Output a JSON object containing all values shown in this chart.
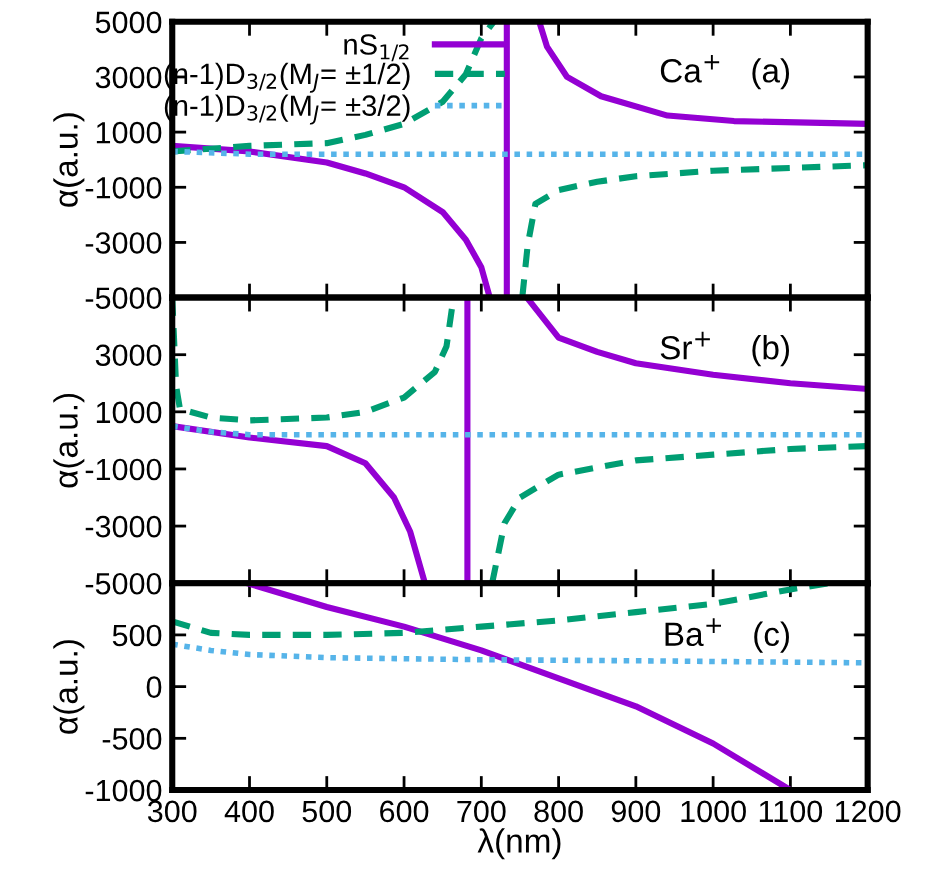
{
  "chart_data": [
    {
      "type": "line",
      "ylabel": "α(a.u.)",
      "annotations": [
        "Ca$^{+}$   (a)"
      ],
      "xlim": [
        300,
        1200
      ],
      "xticks": [
        300,
        400,
        500,
        600,
        700,
        800,
        900,
        1000,
        1100,
        1200
      ],
      "ylim": [
        -5000,
        5000
      ],
      "yticks": [
        -5000,
        -3000,
        -1000,
        1000,
        3000,
        5000
      ],
      "tick_labels": "y",
      "grid": false,
      "legend": "top left",
      "series": [
        {
          "name": "nS$_{1/2}$",
          "color": "#9400d3",
          "line_style": "solid",
          "x": [
            300,
            400,
            500,
            550,
            600,
            650,
            680,
            700,
            710,
            null,
            733,
            733,
            null,
            775,
            785,
            811,
            855,
            941,
            1027,
            1200
          ],
          "values": [
            500,
            300,
            -100,
            -500,
            -1000,
            -1900,
            -2900,
            -3900,
            -4900,
            null,
            -5000,
            5000,
            null,
            5000,
            4100,
            3000,
            2300,
            1600,
            1400,
            1300
          ]
        },
        {
          "name": "(n-1)D$_{3/2}$(M$_{J}$= ±1/2)",
          "color": "#009e73",
          "line_style": "dashed",
          "x": [
            300,
            400,
            500,
            550,
            600,
            650,
            680,
            700,
            716,
            null,
            753,
            760,
            770,
            800,
            850,
            900,
            1000,
            1100,
            1200
          ],
          "values": [
            300,
            500,
            600,
            900,
            1300,
            2100,
            3100,
            4400,
            5000,
            null,
            -5000,
            -3100,
            -1600,
            -1100,
            -800,
            -600,
            -400,
            -300,
            -200
          ]
        },
        {
          "name": "(n-1)D$_{3/2}$(M$_{J}$= ±3/2)",
          "color": "#56b4e9",
          "line_style": "dotted",
          "x": [
            300,
            400,
            500,
            800,
            1200
          ],
          "values": [
            300,
            200,
            200,
            200,
            200
          ]
        }
      ]
    },
    {
      "type": "line",
      "ylabel": "α(a.u.)",
      "annotations": [
        "Sr$^{+}$    (b)"
      ],
      "xlim": [
        300,
        1200
      ],
      "xticks": [
        300,
        400,
        500,
        600,
        700,
        800,
        900,
        1000,
        1100,
        1200
      ],
      "ylim": [
        -5000,
        5000
      ],
      "yticks": [
        -5000,
        -3000,
        -1000,
        1000,
        3000,
        {
          "value": 5000,
          "label": null
        }
      ],
      "tick_labels": "y",
      "grid": false,
      "series": [
        {
          "color": "#9400d3",
          "line_style": "solid",
          "x": [
            300,
            400,
            500,
            550,
            587,
            608,
            627,
            null,
            682,
            682,
            null,
            759,
            800,
            850,
            900,
            1000,
            1100,
            1200
          ],
          "values": [
            500,
            100,
            -200,
            -800,
            -2000,
            -3200,
            -5000,
            null,
            -5000,
            5000,
            null,
            5000,
            3600,
            3100,
            2700,
            2300,
            2000,
            1800
          ]
        },
        {
          "color": "#009e73",
          "line_style": "dashed",
          "x": [
            300,
            305,
            310,
            350,
            400,
            500,
            550,
            600,
            640,
            655,
            664,
            null,
            714,
            730,
            750,
            800,
            900,
            1000,
            1100,
            1200
          ],
          "values": [
            5000,
            1900,
            1100,
            800,
            700,
            800,
            1000,
            1500,
            2400,
            3300,
            5000,
            null,
            -5000,
            -2900,
            -2000,
            -1200,
            -700,
            -500,
            -300,
            -200
          ]
        },
        {
          "color": "#56b4e9",
          "line_style": "dotted",
          "x": [
            300,
            350,
            400,
            700,
            1200
          ],
          "values": [
            500,
            300,
            200,
            200,
            200
          ]
        }
      ]
    },
    {
      "type": "line",
      "xlabel": "λ(nm)",
      "ylabel": "α(a.u.)",
      "annotations": [
        "Ba$^{+}$   (c)"
      ],
      "xlim": [
        300,
        1200
      ],
      "xticks": [
        300,
        400,
        500,
        600,
        700,
        800,
        900,
        1000,
        1100,
        1200
      ],
      "ylim": [
        -1000,
        1000
      ],
      "yticks": [
        -1000,
        -500,
        0,
        500,
        {
          "value": 1000,
          "label": null
        }
      ],
      "grid": false,
      "series": [
        {
          "color": "#9400d3",
          "line_style": "solid",
          "x": [
            397,
            500,
            600,
            700,
            800,
            900,
            1000,
            1100
          ],
          "values": [
            1000,
            770,
            580,
            350,
            80,
            -190,
            -550,
            -1000
          ]
        },
        {
          "color": "#009e73",
          "line_style": "dashed",
          "x": [
            300,
            350,
            400,
            500,
            600,
            700,
            800,
            900,
            1000,
            1100,
            1150
          ],
          "values": [
            630,
            520,
            500,
            500,
            520,
            580,
            640,
            720,
            800,
            940,
            1000
          ]
        },
        {
          "color": "#56b4e9",
          "line_style": "dotted",
          "x": [
            300,
            350,
            400,
            500,
            700,
            900,
            1200
          ],
          "values": [
            410,
            350,
            310,
            280,
            260,
            250,
            230
          ]
        }
      ]
    }
  ]
}
